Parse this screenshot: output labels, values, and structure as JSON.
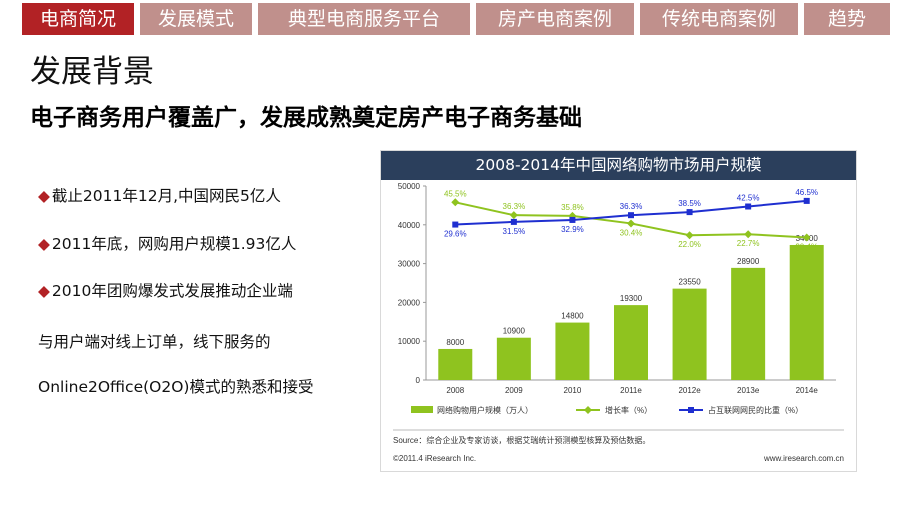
{
  "nav": {
    "tabs": [
      {
        "label": "电商简况",
        "active": true
      },
      {
        "label": "发展模式",
        "active": false
      },
      {
        "label": "典型电商服务平台",
        "active": false
      },
      {
        "label": "房产电商案例",
        "active": false
      },
      {
        "label": "传统电商案例",
        "active": false
      },
      {
        "label": "趋势",
        "active": false
      }
    ],
    "active_color": "#b22225",
    "inactive_color": "#c0908c"
  },
  "section_title": "发展背景",
  "headline": "电子商务用户覆盖广，发展成熟奠定房产电子商务基础",
  "bullets": {
    "marker": "◆",
    "lines": [
      {
        "marker": true,
        "text": "截止2011年12月,中国网民5亿人"
      },
      {
        "marker": true,
        "text": "2011年底，网购用户规模1.93亿人"
      },
      {
        "marker": true,
        "text": "2010年团购爆发式发展推动企业端"
      },
      {
        "marker": false,
        "text": "与用户端对线上订单，线下服务的"
      },
      {
        "marker": false,
        "text": "Online2Office(O2O)模式的熟悉和接受"
      }
    ]
  },
  "chart_data": {
    "type": "bar",
    "title": "2008-2014年中国网络购物市场用户规模",
    "categories": [
      "2008",
      "2009",
      "2010",
      "2011e",
      "2012e",
      "2013e",
      "2014e"
    ],
    "series": [
      {
        "name": "网络购物用户规模（万人）",
        "type": "bar",
        "color": "#8fc31f",
        "values": [
          8000,
          10900,
          14800,
          19300,
          23550,
          28900,
          34800
        ]
      },
      {
        "name": "增长率（%）",
        "type": "line",
        "color": "#8fc31f",
        "values": [
          45.5,
          36.3,
          35.8,
          30.4,
          22.0,
          22.7,
          20.4
        ],
        "labels": [
          "45.5%",
          "36.3%",
          "35.8%",
          "30.4%",
          "22.0%",
          "22.7%",
          "20.4%"
        ]
      },
      {
        "name": "占互联网网民的比重（%）",
        "type": "line",
        "color": "#1f2fd0",
        "values": [
          29.6,
          31.5,
          32.9,
          36.3,
          38.5,
          42.5,
          46.5
        ],
        "labels": [
          "29.6%",
          "31.5%",
          "32.9%",
          "36.3%",
          "38.5%",
          "42.5%",
          "46.5%"
        ]
      }
    ],
    "ylim": [
      0,
      50000
    ],
    "yticks": [
      "0",
      "10000",
      "20000",
      "30000",
      "40000",
      "50000"
    ],
    "legend_position": "bottom",
    "source": "Source：综合企业及专家访谈，根据艾瑞统计预测模型核算及预估数据。",
    "copyright": "©2011.4 iResearch Inc.",
    "website": "www.iresearch.com.cn"
  }
}
